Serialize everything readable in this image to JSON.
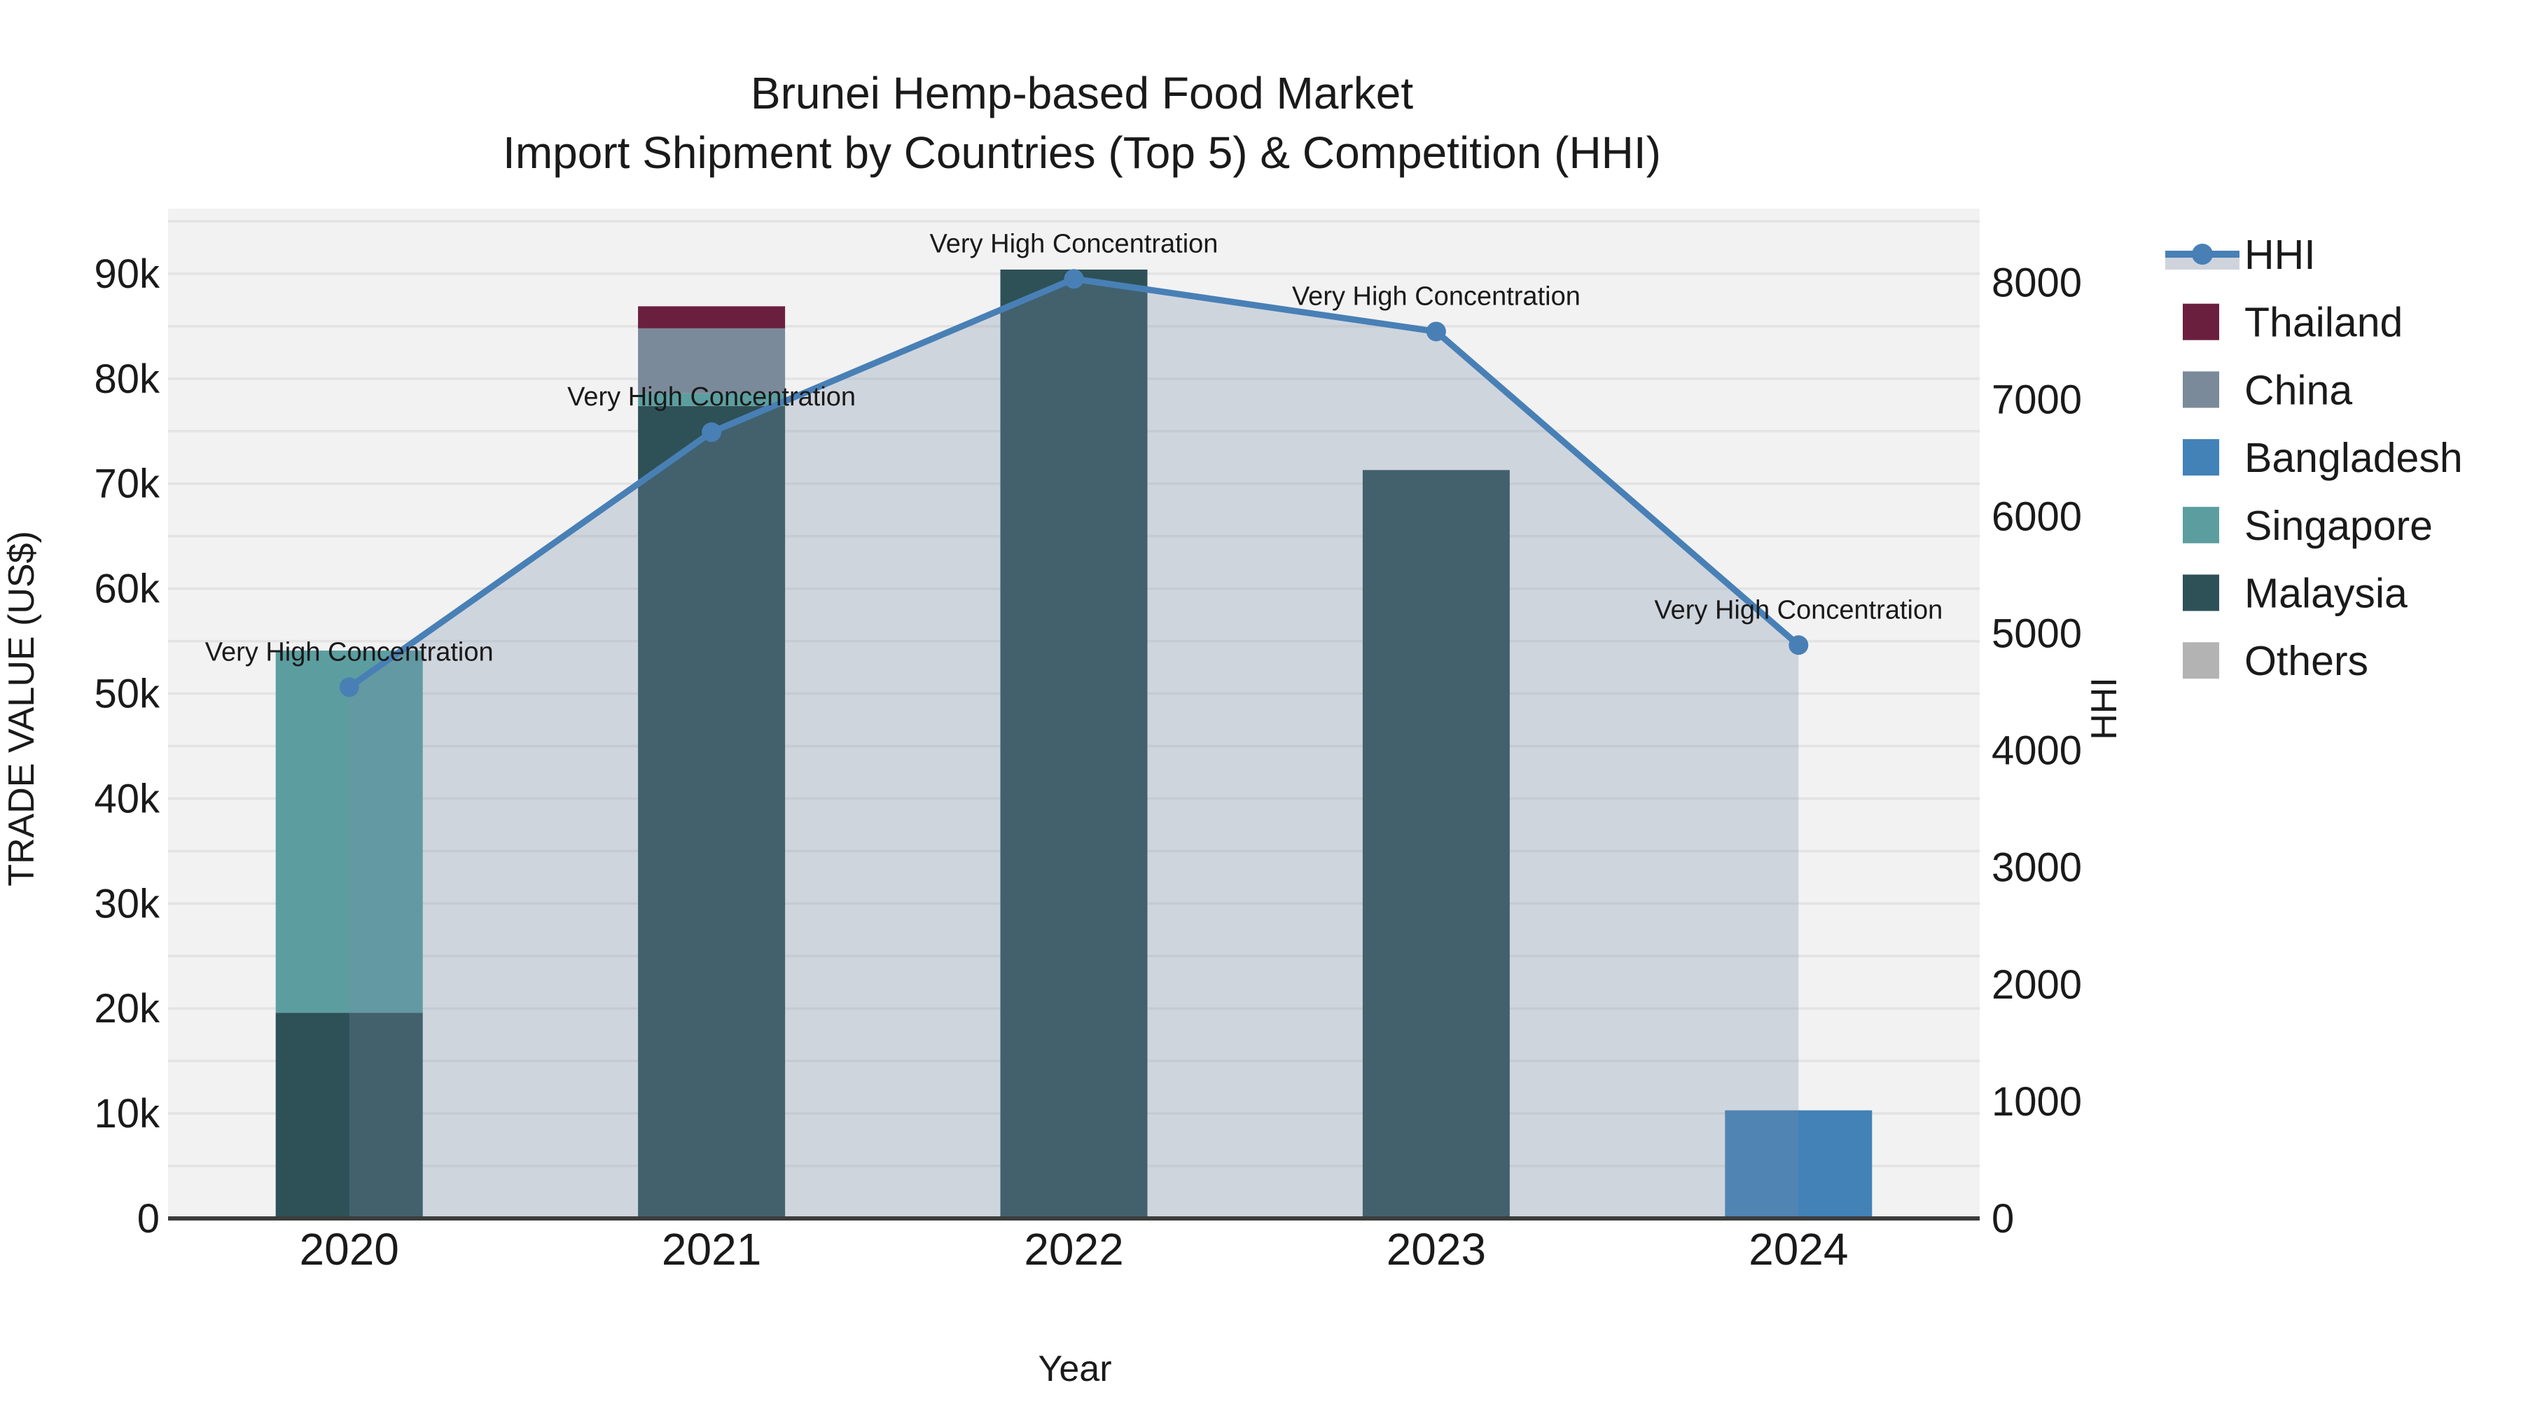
{
  "figure": {
    "title_line1": "Brunei Hemp-based Food Market",
    "title_line2": "Import Shipment by Countries (Top 5) & Competition (HHI)",
    "x_axis_title": "Year",
    "y_axis_title": "TRADE VALUE (US$)",
    "y2_axis_title": "HHI"
  },
  "chart_data": {
    "type": "bar",
    "subtype": "stacked-bars-with-line-and-area",
    "categories": [
      "2020",
      "2021",
      "2022",
      "2023",
      "2024"
    ],
    "series": [
      {
        "name": "Malaysia",
        "color": "#2E5157",
        "values": [
          19600,
          77400,
          90400,
          71300,
          0
        ]
      },
      {
        "name": "Singapore",
        "color": "#5C9EA0",
        "values": [
          34500,
          1200,
          0,
          0,
          0
        ]
      },
      {
        "name": "Bangladesh",
        "color": "#4282B7",
        "values": [
          0,
          0,
          0,
          0,
          10300
        ]
      },
      {
        "name": "China",
        "color": "#7B8A9A",
        "values": [
          0,
          6200,
          0,
          0,
          0
        ]
      },
      {
        "name": "Thailand",
        "color": "#6B1F3E",
        "values": [
          0,
          2100,
          0,
          0,
          0
        ]
      },
      {
        "name": "Others",
        "color": "#B3B3B3",
        "values": [
          0,
          0,
          0,
          0,
          0
        ]
      }
    ],
    "line_series": {
      "name": "HHI",
      "color": "#4880B6",
      "area_fill": "rgba(120,140,170,0.28)",
      "values": [
        4540,
        6720,
        8030,
        7580,
        4900
      ]
    },
    "ylabel": "TRADE VALUE (US$)",
    "y2label": "HHI",
    "xlabel": "Year",
    "ylim": [
      0,
      96200
    ],
    "y2lim": [
      0,
      8630
    ],
    "grid_step": 5000,
    "grid_on": true,
    "yticks": [
      {
        "v": 0,
        "label": "0"
      },
      {
        "v": 10000,
        "label": "10k"
      },
      {
        "v": 20000,
        "label": "20k"
      },
      {
        "v": 30000,
        "label": "30k"
      },
      {
        "v": 40000,
        "label": "40k"
      },
      {
        "v": 50000,
        "label": "50k"
      },
      {
        "v": 60000,
        "label": "60k"
      },
      {
        "v": 70000,
        "label": "70k"
      },
      {
        "v": 80000,
        "label": "80k"
      },
      {
        "v": 90000,
        "label": "90k"
      }
    ],
    "y2ticks": [
      {
        "v": 0,
        "label": "0"
      },
      {
        "v": 1000,
        "label": "1000"
      },
      {
        "v": 2000,
        "label": "2000"
      },
      {
        "v": 3000,
        "label": "3000"
      },
      {
        "v": 4000,
        "label": "4000"
      },
      {
        "v": 5000,
        "label": "5000"
      },
      {
        "v": 6000,
        "label": "6000"
      },
      {
        "v": 7000,
        "label": "7000"
      },
      {
        "v": 8000,
        "label": "8000"
      }
    ],
    "annotations": [
      {
        "category": "2020",
        "text": "Very High Concentration"
      },
      {
        "category": "2021",
        "text": "Very High Concentration"
      },
      {
        "category": "2022",
        "text": "Very High Concentration"
      },
      {
        "category": "2023",
        "text": "Very High Concentration"
      },
      {
        "category": "2024",
        "text": "Very High Concentration"
      }
    ],
    "legend": {
      "position": "right",
      "items": [
        {
          "label": "HHI",
          "type": "line",
          "color": "#4880B6",
          "band_color": "#CFD4DC"
        },
        {
          "label": "Thailand",
          "type": "swatch",
          "color": "#6B1F3E"
        },
        {
          "label": "China",
          "type": "swatch",
          "color": "#7B8A9A"
        },
        {
          "label": "Bangladesh",
          "type": "swatch",
          "color": "#4282B7"
        },
        {
          "label": "Singapore",
          "type": "swatch",
          "color": "#5C9EA0"
        },
        {
          "label": "Malaysia",
          "type": "swatch",
          "color": "#2E5157"
        },
        {
          "label": "Others",
          "type": "swatch",
          "color": "#B3B3B3"
        }
      ]
    },
    "style": {
      "plot_bg": "#F2F2F2",
      "grid_color": "#E3E3E3",
      "axis_line_color": "#3C3C3C"
    }
  }
}
